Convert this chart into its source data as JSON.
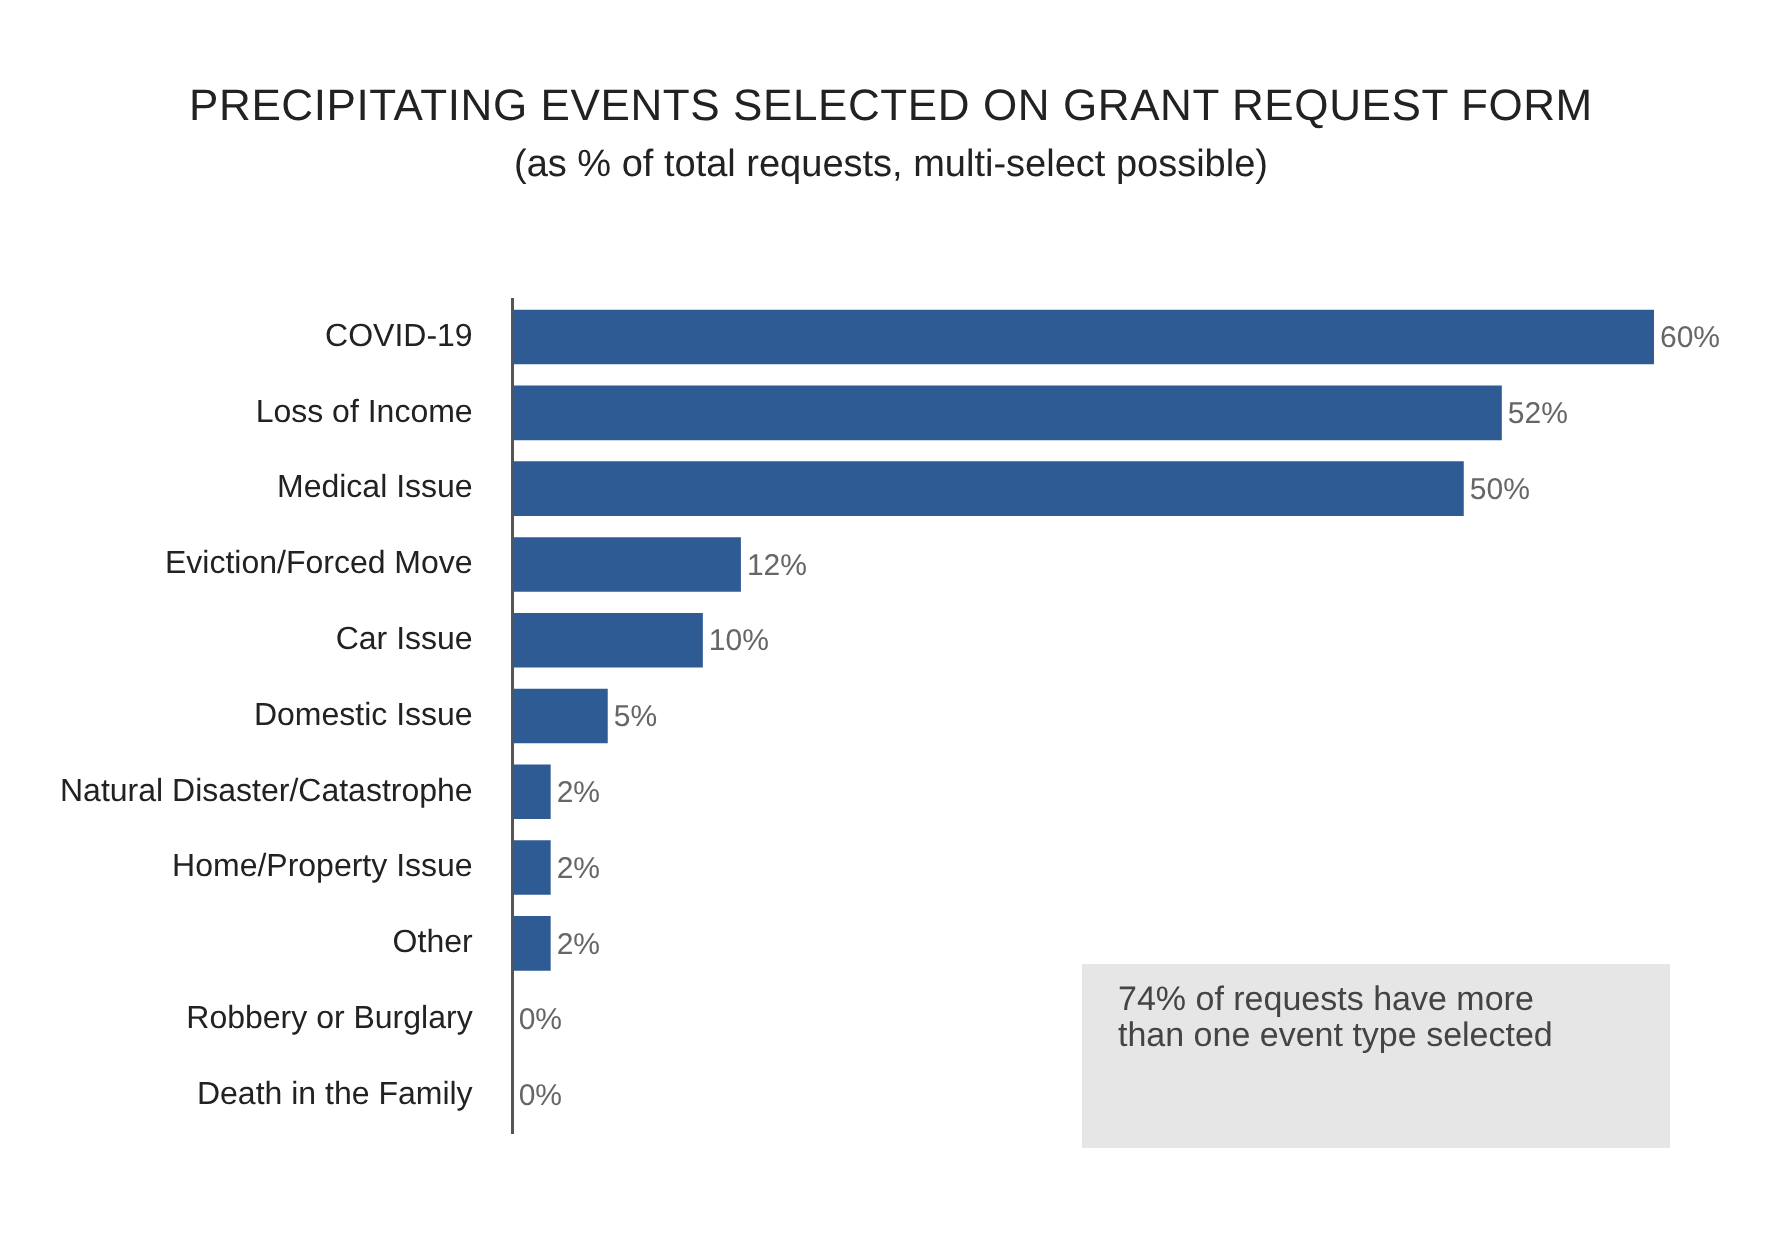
{
  "chart_data": {
    "type": "bar",
    "orientation": "horizontal",
    "title": "PRECIPITATING EVENTS SELECTED ON GRANT REQUEST FORM",
    "subtitle": "(as % of total requests, multi-select possible)",
    "categories": [
      "COVID-19",
      "Loss of Income",
      "Medical Issue",
      "Eviction/Forced Move",
      "Car Issue",
      "Domestic Issue",
      "Natural Disaster/Catastrophe",
      "Home/Property Issue",
      "Other",
      "Robbery or Burglary",
      "Death in the Family"
    ],
    "values": [
      60,
      52,
      50,
      12,
      10,
      5,
      2,
      2,
      2,
      0,
      0
    ],
    "value_labels": [
      "60%",
      "52%",
      "50%",
      "12%",
      "10%",
      "5%",
      "2%",
      "2%",
      "2%",
      "0%",
      "0%"
    ],
    "color": "#2f5b95",
    "legend": false,
    "annotations": [
      "74% of requests have more than one event type selected"
    ]
  }
}
